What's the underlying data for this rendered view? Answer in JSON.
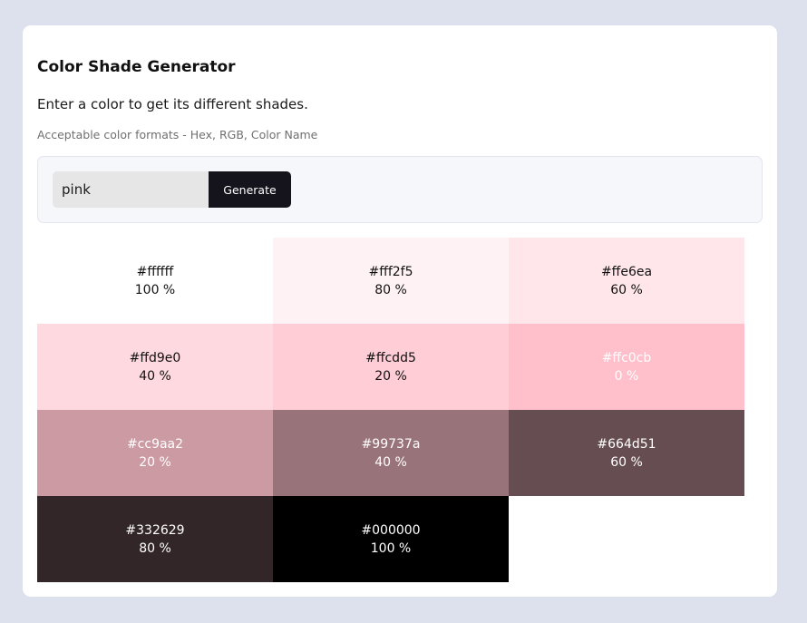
{
  "app": {
    "title": "Color Shade Generator",
    "subtitle": "Enter a color to get its different shades.",
    "formats_note": "Acceptable color formats - Hex, RGB, Color Name"
  },
  "input": {
    "value": "pink",
    "button_label": "Generate"
  },
  "shades": [
    {
      "hex": "#ffffff",
      "percent": "100 %",
      "text_color": "#111111"
    },
    {
      "hex": "#fff2f5",
      "percent": "80 %",
      "text_color": "#111111"
    },
    {
      "hex": "#ffe6ea",
      "percent": "60 %",
      "text_color": "#111111"
    },
    {
      "hex": "#ffd9e0",
      "percent": "40 %",
      "text_color": "#111111"
    },
    {
      "hex": "#ffcdd5",
      "percent": "20 %",
      "text_color": "#111111"
    },
    {
      "hex": "#ffc0cb",
      "percent": "0 %",
      "text_color": "#ffffff"
    },
    {
      "hex": "#cc9aa2",
      "percent": "20 %",
      "text_color": "#ffffff"
    },
    {
      "hex": "#99737a",
      "percent": "40 %",
      "text_color": "#ffffff"
    },
    {
      "hex": "#664d51",
      "percent": "60 %",
      "text_color": "#ffffff"
    },
    {
      "hex": "#332629",
      "percent": "80 %",
      "text_color": "#ffffff"
    },
    {
      "hex": "#000000",
      "percent": "100 %",
      "text_color": "#ffffff"
    }
  ]
}
